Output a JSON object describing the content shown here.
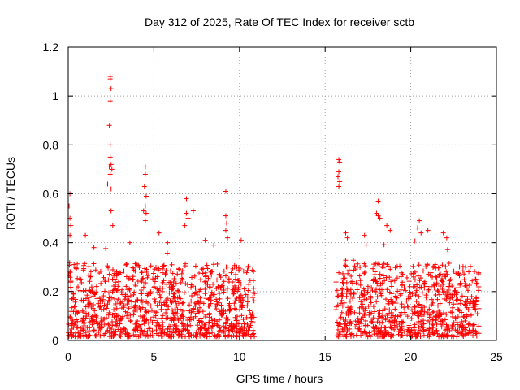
{
  "chart_data": {
    "type": "scatter",
    "title": "Day 312 of 2025, Rate Of TEC Index for receiver sctb",
    "xlabel": "GPS time / hours",
    "ylabel": "ROTI / TECUs",
    "xlim": [
      0,
      25
    ],
    "ylim": [
      0,
      1.2
    ],
    "x_ticks": [
      0,
      5,
      10,
      15,
      20,
      25
    ],
    "x_tick_labels": [
      "0",
      "5",
      "10",
      "15",
      "20",
      "25"
    ],
    "y_ticks": [
      0,
      0.2,
      0.4,
      0.6,
      0.8,
      1.0,
      1.2
    ],
    "y_tick_labels": [
      "0",
      "0.2",
      "0.4",
      "0.6",
      "0.8",
      "1",
      "1.2"
    ],
    "grid": true,
    "marker": "+",
    "series_color": "#ff0000",
    "series": [
      {
        "name": "ROTI",
        "segments": [
          {
            "x_start": 0.0,
            "x_end": 10.9,
            "typical_max": 0.3
          },
          {
            "x_start": 15.6,
            "x_end": 24.0,
            "typical_max": 0.3
          }
        ],
        "notable_points": [
          {
            "x": 2.45,
            "y": 1.08
          },
          {
            "x": 2.45,
            "y": 1.07
          },
          {
            "x": 2.5,
            "y": 1.03
          },
          {
            "x": 2.45,
            "y": 0.98
          },
          {
            "x": 2.4,
            "y": 0.88
          },
          {
            "x": 2.45,
            "y": 0.8
          },
          {
            "x": 2.45,
            "y": 0.75
          },
          {
            "x": 2.5,
            "y": 0.72
          },
          {
            "x": 2.4,
            "y": 0.71
          },
          {
            "x": 2.55,
            "y": 0.7
          },
          {
            "x": 2.45,
            "y": 0.68
          },
          {
            "x": 2.3,
            "y": 0.64
          },
          {
            "x": 2.5,
            "y": 0.62
          },
          {
            "x": 2.5,
            "y": 0.53
          },
          {
            "x": 2.6,
            "y": 0.47
          },
          {
            "x": 0.1,
            "y": 0.6
          },
          {
            "x": 0.05,
            "y": 0.55
          },
          {
            "x": 0.1,
            "y": 0.5
          },
          {
            "x": 0.15,
            "y": 0.47
          },
          {
            "x": 0.1,
            "y": 0.43
          },
          {
            "x": 4.5,
            "y": 0.71
          },
          {
            "x": 4.5,
            "y": 0.68
          },
          {
            "x": 4.45,
            "y": 0.63
          },
          {
            "x": 4.55,
            "y": 0.59
          },
          {
            "x": 4.5,
            "y": 0.55
          },
          {
            "x": 4.4,
            "y": 0.53
          },
          {
            "x": 4.55,
            "y": 0.52
          },
          {
            "x": 4.5,
            "y": 0.49
          },
          {
            "x": 6.9,
            "y": 0.58
          },
          {
            "x": 7.3,
            "y": 0.53
          },
          {
            "x": 6.9,
            "y": 0.52
          },
          {
            "x": 7.0,
            "y": 0.5
          },
          {
            "x": 6.8,
            "y": 0.47
          },
          {
            "x": 9.2,
            "y": 0.61
          },
          {
            "x": 9.2,
            "y": 0.51
          },
          {
            "x": 9.25,
            "y": 0.48
          },
          {
            "x": 9.2,
            "y": 0.45
          },
          {
            "x": 9.3,
            "y": 0.42
          },
          {
            "x": 10.1,
            "y": 0.41
          },
          {
            "x": 15.8,
            "y": 0.74
          },
          {
            "x": 15.85,
            "y": 0.73
          },
          {
            "x": 15.8,
            "y": 0.69
          },
          {
            "x": 15.75,
            "y": 0.67
          },
          {
            "x": 15.85,
            "y": 0.65
          },
          {
            "x": 15.8,
            "y": 0.63
          },
          {
            "x": 18.1,
            "y": 0.57
          },
          {
            "x": 18.0,
            "y": 0.52
          },
          {
            "x": 18.1,
            "y": 0.51
          },
          {
            "x": 18.2,
            "y": 0.5
          },
          {
            "x": 18.6,
            "y": 0.47
          },
          {
            "x": 18.8,
            "y": 0.45
          },
          {
            "x": 20.5,
            "y": 0.49
          },
          {
            "x": 20.4,
            "y": 0.46
          },
          {
            "x": 20.6,
            "y": 0.44
          },
          {
            "x": 21.0,
            "y": 0.45
          },
          {
            "x": 21.9,
            "y": 0.44
          },
          {
            "x": 22.1,
            "y": 0.42
          },
          {
            "x": 16.2,
            "y": 0.44
          },
          {
            "x": 16.3,
            "y": 0.42
          },
          {
            "x": 17.3,
            "y": 0.43
          },
          {
            "x": 1.0,
            "y": 0.43
          },
          {
            "x": 1.5,
            "y": 0.38
          },
          {
            "x": 3.6,
            "y": 0.4
          },
          {
            "x": 5.3,
            "y": 0.44
          },
          {
            "x": 5.8,
            "y": 0.4
          },
          {
            "x": 8.0,
            "y": 0.41
          },
          {
            "x": 8.5,
            "y": 0.39
          },
          {
            "x": 10.5,
            "y": 0.3
          },
          {
            "x": 23.2,
            "y": 0.3
          },
          {
            "x": 23.8,
            "y": 0.25
          }
        ]
      }
    ]
  }
}
